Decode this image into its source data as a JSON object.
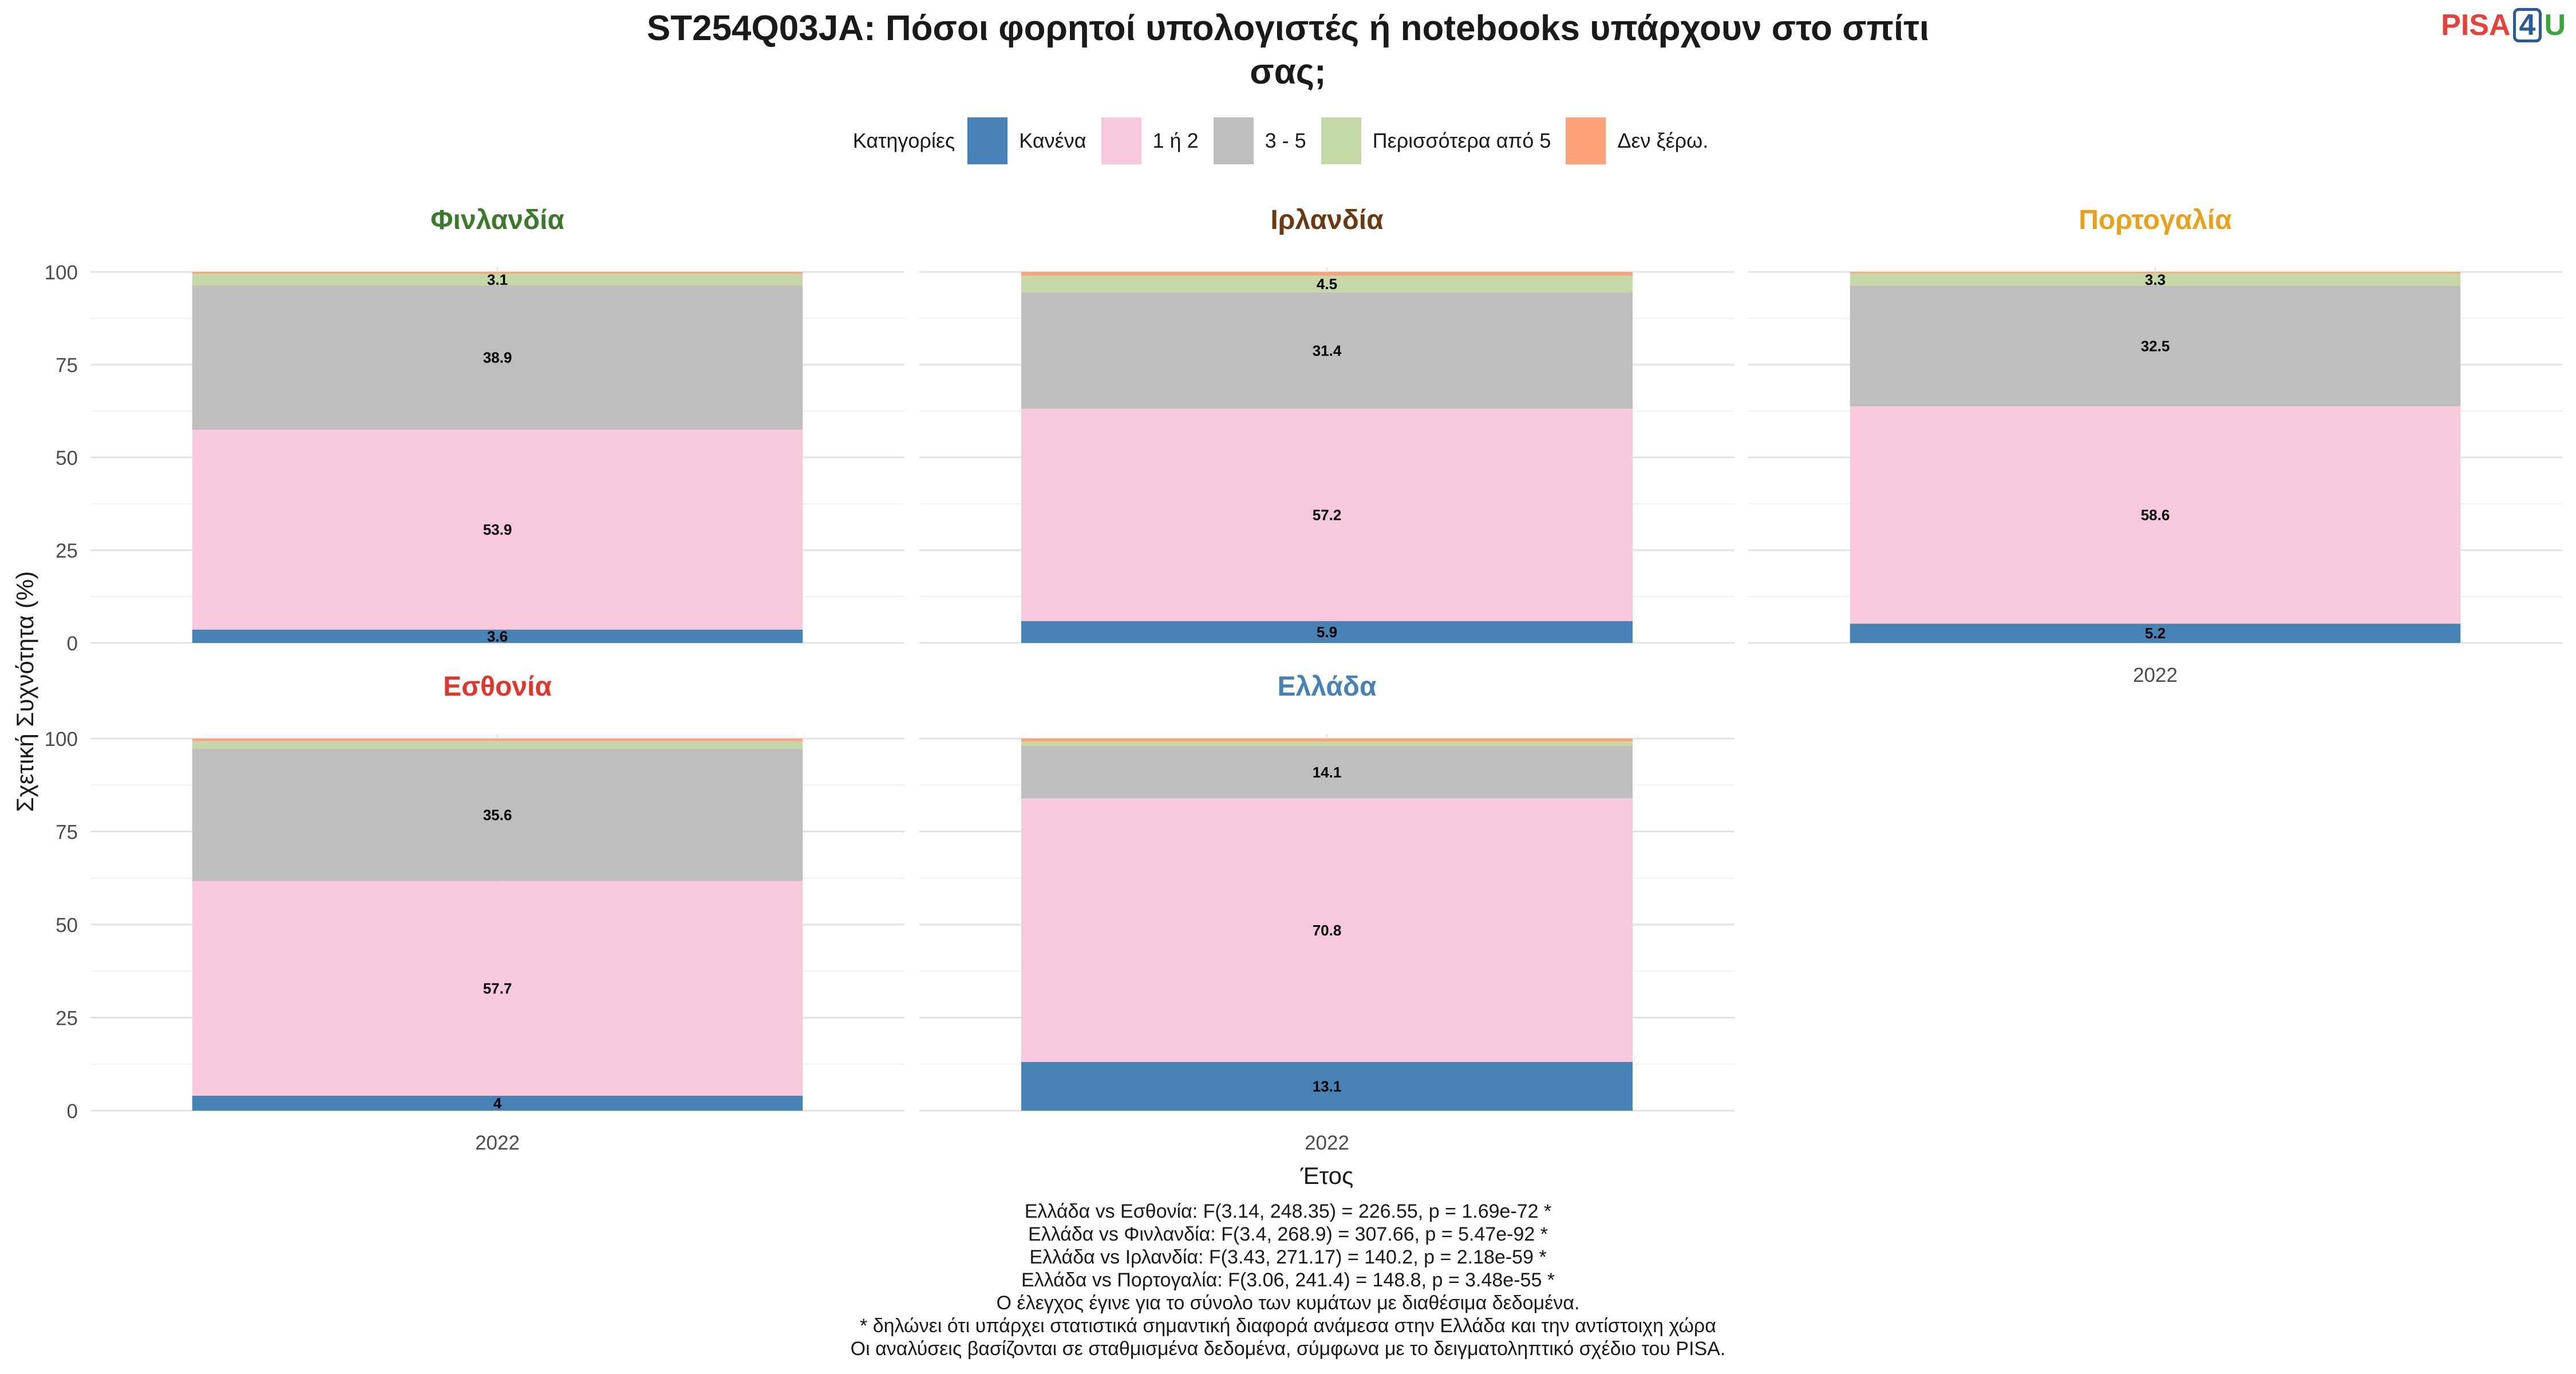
{
  "title_lines": [
    "ST254Q03JA: Πόσοι φορητοί υπολογιστές ή notebooks υπάρχουν στο σπίτι",
    "σας;"
  ],
  "logo": {
    "part1": "PISA",
    "part2": "4",
    "part3": "U"
  },
  "legend": {
    "title": "Κατηγορίες",
    "items": [
      {
        "label": "Κανένα",
        "color": "#4682b4"
      },
      {
        "label": "1 ή 2",
        "color": "#f8c8dc"
      },
      {
        "label": "3 - 5",
        "color": "#bebebe"
      },
      {
        "label": "Περισσότερα από 5",
        "color": "#c5d9a8"
      },
      {
        "label": "Δεν ξέρω.",
        "color": "#ffa27a"
      }
    ]
  },
  "chart_data": {
    "type": "bar",
    "stacked": true,
    "ylabel": "Σχετική Συχνότητα (%)",
    "xlabel": "Έτος",
    "ylim": [
      0,
      100
    ],
    "yticks": [
      0,
      25,
      50,
      75,
      100
    ],
    "categories": [
      "2022"
    ],
    "grid": true,
    "legend_position": "top",
    "series_names": [
      "Κανένα",
      "1 ή 2",
      "3 - 5",
      "Περισσότερα από 5",
      "Δεν ξέρω."
    ],
    "panels": [
      {
        "name": "Φινλανδία",
        "color": "#3a7a2a",
        "values": [
          3.6,
          53.9,
          38.9,
          3.1,
          0.5
        ],
        "labels": [
          "3.6",
          "53.9",
          "38.9",
          "3.1",
          ""
        ]
      },
      {
        "name": "Ιρλανδία",
        "color": "#6b3a12",
        "values": [
          5.9,
          57.2,
          31.4,
          4.5,
          1.0
        ],
        "labels": [
          "5.9",
          "57.2",
          "31.4",
          "4.5",
          ""
        ]
      },
      {
        "name": "Πορτογαλία",
        "color": "#e8a21a",
        "values": [
          5.2,
          58.6,
          32.5,
          3.3,
          0.4
        ],
        "labels": [
          "5.2",
          "58.6",
          "32.5",
          "3.3",
          ""
        ]
      },
      {
        "name": "Εσθονία",
        "color": "#e2352b",
        "values": [
          4.0,
          57.7,
          35.6,
          2.0,
          0.7
        ],
        "labels": [
          "4",
          "57.7",
          "35.6",
          "",
          ""
        ]
      },
      {
        "name": "Ελλάδα",
        "color": "#4682b4",
        "values": [
          13.1,
          70.8,
          14.1,
          1.2,
          0.8
        ],
        "labels": [
          "13.1",
          "70.8",
          "14.1",
          "",
          ""
        ]
      }
    ]
  },
  "footer_lines": [
    "Ελλάδα vs Εσθονία: F(3.14, 248.35) = 226.55, p = 1.69e-72 *",
    "Ελλάδα vs Φινλανδία: F(3.4, 268.9) = 307.66, p = 5.47e-92 *",
    "Ελλάδα vs Ιρλανδία: F(3.43, 271.17) = 140.2, p = 2.18e-59 *",
    "Ελλάδα vs Πορτογαλία: F(3.06, 241.4) = 148.8, p = 3.48e-55 *",
    "Ο έλεγχος έγινε για το σύνολο των κυμάτων με διαθέσιμα δεδομένα.",
    "* δηλώνει ότι υπάρχει στατιστικά σημαντική διαφορά ανάμεσα στην Ελλάδα και την αντίστοιχη χώρα",
    "Οι αναλύσεις βασίζονται σε σταθμισμένα δεδομένα, σύμφωνα με το δειγματοληπτικό σχέδιο του PISA."
  ]
}
